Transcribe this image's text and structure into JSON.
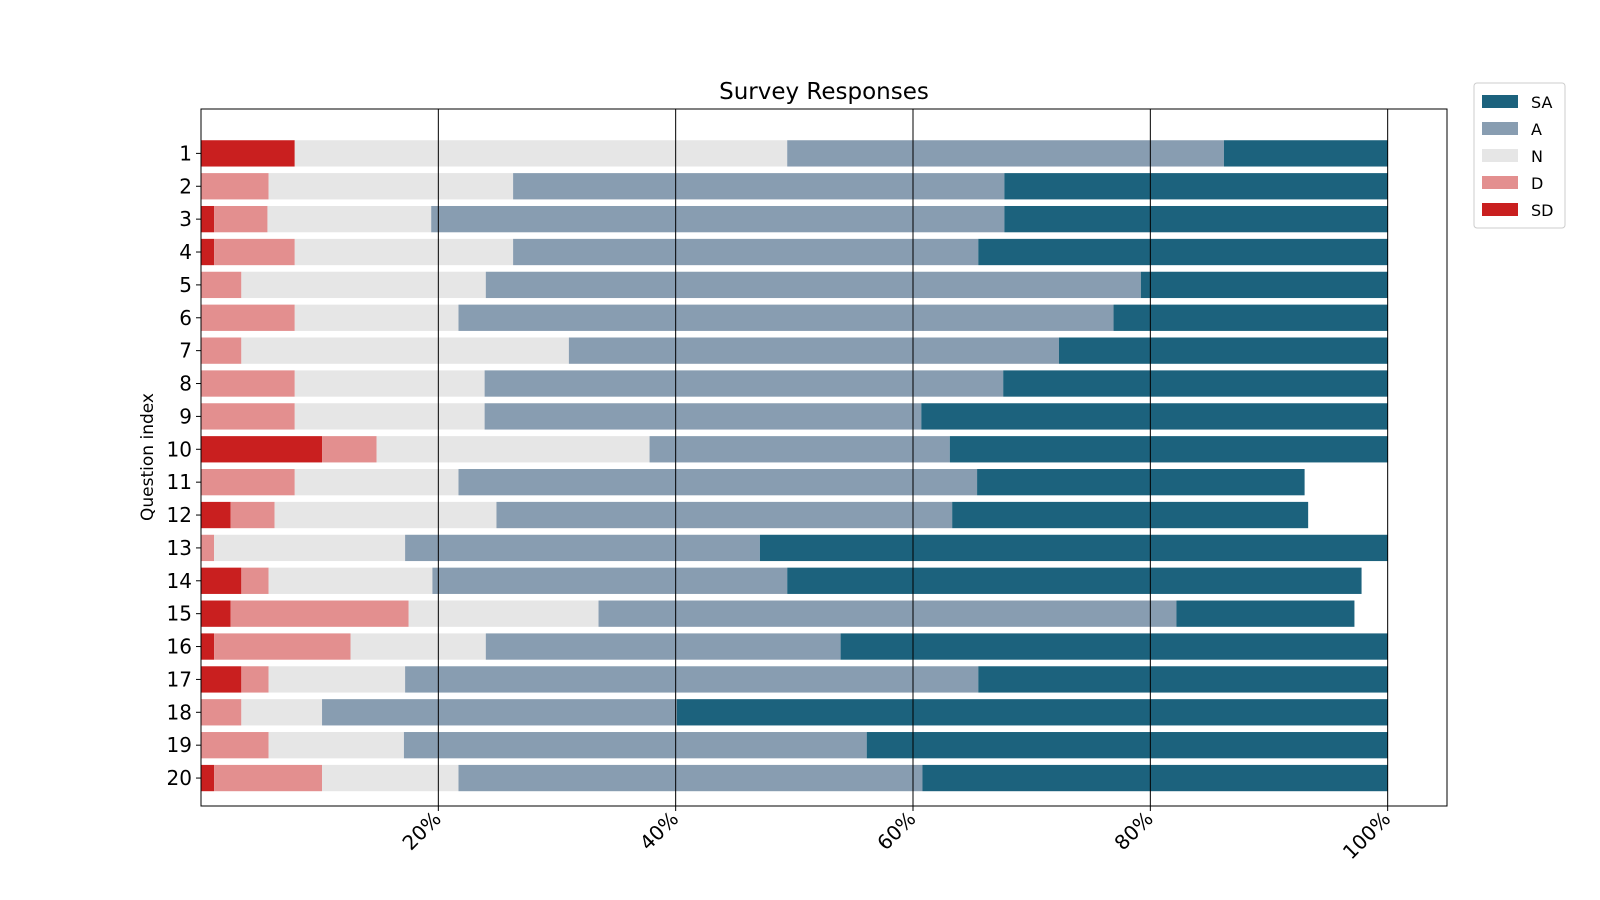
{
  "chart_data": {
    "type": "bar",
    "orientation": "horizontal",
    "stacked": true,
    "title": "Survey Responses",
    "xlabel": "",
    "ylabel": "Question index",
    "xlim": [
      0.0,
      1.05
    ],
    "xticks": [
      0.2,
      0.4,
      0.6,
      0.8,
      1.0
    ],
    "xtick_labels": [
      "20%",
      "40%",
      "60%",
      "80%",
      "100%"
    ],
    "grid": "vertical lines at x ticks",
    "legend_position": "outside-top-right",
    "categories": [
      "1",
      "2",
      "3",
      "4",
      "5",
      "6",
      "7",
      "8",
      "9",
      "10",
      "11",
      "12",
      "13",
      "14",
      "15",
      "16",
      "17",
      "18",
      "19",
      "20"
    ],
    "series": [
      {
        "name": "SD",
        "color": "#c91f1f",
        "values": [
          0.079,
          0,
          0.011,
          0.011,
          0,
          0,
          0,
          0,
          0,
          0.102,
          0,
          0.025,
          0,
          0.034,
          0.025,
          0.011,
          0.034,
          0,
          0,
          0.011
        ]
      },
      {
        "name": "D",
        "color": "#e38f8f",
        "values": [
          0,
          0.057,
          0.045,
          0.068,
          0.034,
          0.079,
          0.034,
          0.079,
          0.079,
          0.046,
          0.079,
          0.037,
          0.011,
          0.023,
          0.15,
          0.115,
          0.023,
          0.034,
          0.057,
          0.091
        ]
      },
      {
        "name": "N",
        "color": "#e6e6e6",
        "values": [
          0.415,
          0.206,
          0.138,
          0.184,
          0.206,
          0.138,
          0.276,
          0.16,
          0.16,
          0.23,
          0.138,
          0.187,
          0.161,
          0.138,
          0.16,
          0.114,
          0.115,
          0.068,
          0.114,
          0.115
        ]
      },
      {
        "name": "A",
        "color": "#889db1",
        "values": [
          0.368,
          0.414,
          0.483,
          0.392,
          0.552,
          0.552,
          0.413,
          0.437,
          0.368,
          0.253,
          0.437,
          0.384,
          0.299,
          0.299,
          0.487,
          0.299,
          0.483,
          0.299,
          0.39,
          0.391
        ]
      },
      {
        "name": "SA",
        "color": "#1c627d",
        "values": [
          0.138,
          0.323,
          0.323,
          0.345,
          0.208,
          0.231,
          0.277,
          0.324,
          0.393,
          0.369,
          0.276,
          0.3,
          0.529,
          0.484,
          0.15,
          0.461,
          0.345,
          0.599,
          0.439,
          0.392
        ]
      }
    ],
    "legend_order": [
      "SA",
      "A",
      "N",
      "D",
      "SD"
    ]
  }
}
